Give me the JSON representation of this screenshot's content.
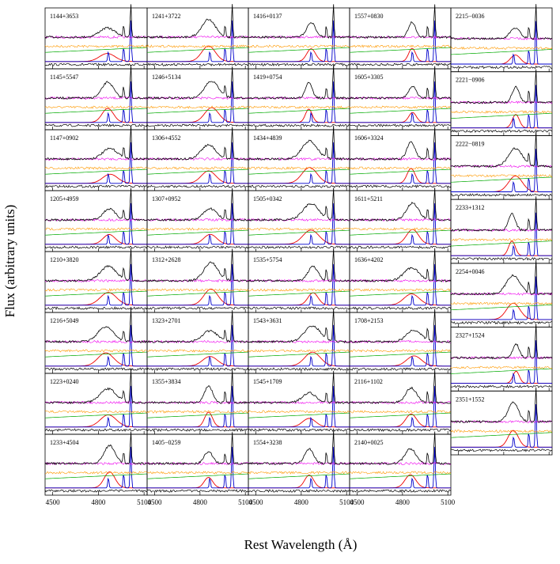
{
  "chart_data": {
    "type": "spectra-grid",
    "xlabel": "Rest Wavelength (Å)",
    "ylabel": "Flux (arbitrary units)",
    "xlim": [
      4450,
      5120
    ],
    "xticks": [
      4500,
      4800,
      5100
    ],
    "columns": [
      [
        "1144+3653",
        "1145+5547",
        "1147+0902",
        "1205+4959",
        "1210+3820",
        "1216+5049",
        "1223+0240",
        "1233+4504"
      ],
      [
        "1241+3722",
        "1246+5134",
        "1306+4552",
        "1307+0952",
        "1312+2628",
        "1323+2701",
        "1355+3834",
        "1405−0259"
      ],
      [
        "1416+0137",
        "1419+0754",
        "1434+4839",
        "1505+0342",
        "1535+5754",
        "1543+3631",
        "1545+1709",
        "1554+3238"
      ],
      [
        "1557+0830",
        "1605+3305",
        "1606+3324",
        "1611+5211",
        "1636+4202",
        "1708+2153",
        "2116+1102",
        "2140+0025"
      ],
      [
        "2215−0036",
        "2221−0906",
        "2222−0819",
        "2233+1312",
        "2254+0046",
        "2327+1524",
        "2351+1552"
      ]
    ]
  }
}
